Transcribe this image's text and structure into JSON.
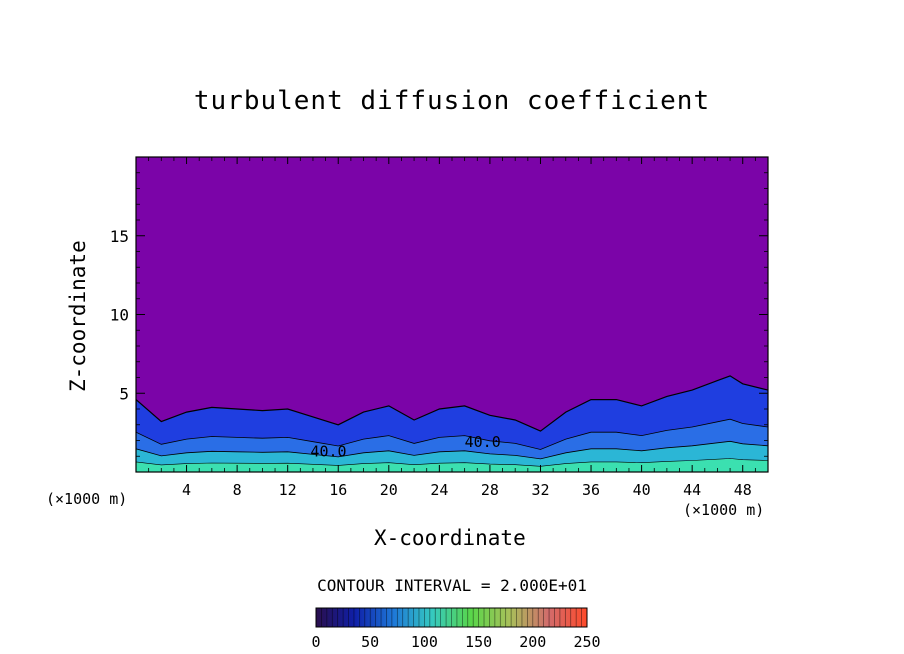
{
  "chart_data": {
    "type": "heatmap",
    "title": "turbulent diffusion coefficient",
    "xlabel": "X-coordinate",
    "ylabel": "Z-coordinate",
    "x_unit_left": "(×1000 m)",
    "x_unit_right": "(×1000 m)",
    "xlim": [
      0,
      50
    ],
    "ylim": [
      0,
      20
    ],
    "x_ticks": [
      4,
      8,
      12,
      16,
      20,
      24,
      28,
      32,
      36,
      40,
      44,
      48
    ],
    "y_ticks": [
      5,
      10,
      15
    ],
    "contour_interval_label": "CONTOUR INTERVAL = 2.000E+01",
    "contour_interval": 20,
    "contour_labels": [
      {
        "text": "40.0",
        "x": 13.8,
        "z": 1.0
      },
      {
        "text": "40.0",
        "x": 26.0,
        "z": 1.6
      }
    ],
    "boundary_layer_top": [
      {
        "x": 0,
        "z": 4.6
      },
      {
        "x": 2,
        "z": 3.2
      },
      {
        "x": 4,
        "z": 3.8
      },
      {
        "x": 6,
        "z": 4.1
      },
      {
        "x": 8,
        "z": 4.0
      },
      {
        "x": 10,
        "z": 3.9
      },
      {
        "x": 12,
        "z": 4.0
      },
      {
        "x": 14,
        "z": 3.5
      },
      {
        "x": 16,
        "z": 3.0
      },
      {
        "x": 18,
        "z": 3.8
      },
      {
        "x": 20,
        "z": 4.2
      },
      {
        "x": 22,
        "z": 3.3
      },
      {
        "x": 24,
        "z": 4.0
      },
      {
        "x": 26,
        "z": 4.2
      },
      {
        "x": 28,
        "z": 3.6
      },
      {
        "x": 30,
        "z": 3.3
      },
      {
        "x": 32,
        "z": 2.6
      },
      {
        "x": 34,
        "z": 3.8
      },
      {
        "x": 36,
        "z": 4.6
      },
      {
        "x": 38,
        "z": 4.6
      },
      {
        "x": 40,
        "z": 4.2
      },
      {
        "x": 42,
        "z": 4.8
      },
      {
        "x": 44,
        "z": 5.2
      },
      {
        "x": 46,
        "z": 5.8
      },
      {
        "x": 47,
        "z": 6.1
      },
      {
        "x": 48,
        "z": 5.6
      },
      {
        "x": 50,
        "z": 5.2
      }
    ],
    "colorbar": {
      "min": 0,
      "max": 250,
      "tick_labels": [
        "0",
        "50",
        "100",
        "150",
        "200",
        "250"
      ],
      "stops": [
        "#2a0f4d",
        "#0f1fa8",
        "#1e78d8",
        "#35c9c0",
        "#59d64a",
        "#a8c05a",
        "#d26c6c",
        "#ff4a2a"
      ]
    },
    "colors": {
      "background_field": "#7b04a8",
      "low_layer": "#1f3ee0",
      "mid_layer": "#2bb6d6",
      "surface_layer": "#3be0b0"
    }
  }
}
